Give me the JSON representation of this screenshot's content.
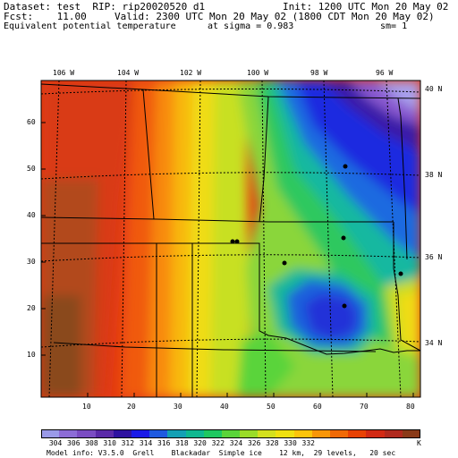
{
  "header": {
    "dataset_line": "Dataset: test  RIP: rip20020520 d1",
    "init_line": "Init: 1200 UTC Mon 20 May 02",
    "fcst_line": "Fcst:    11.00",
    "valid_line": "Valid: 2300 UTC Mon 20 May 02 (1800 CDT Mon 20 May 02)",
    "field_line": "Equivalent potential temperature",
    "sigma_line": "at sigma = 0.983",
    "sm_line": "sm= 1"
  },
  "map": {
    "top_lon_labels": [
      "106 W",
      "104 W",
      "102 W",
      "100 W",
      "98 W",
      "96 W"
    ],
    "right_lat_labels": [
      "40 N",
      "38 N",
      "36 N",
      "34 N"
    ],
    "y_axis_ticks": [
      "60",
      "50",
      "40",
      "30",
      "20",
      "10"
    ],
    "x_axis_ticks": [
      "10",
      "20",
      "30",
      "40",
      "50",
      "60",
      "70",
      "80"
    ],
    "domain_x": [
      1,
      82
    ],
    "domain_y": [
      1,
      69
    ]
  },
  "colorbar": {
    "labels": [
      "304",
      "306",
      "308",
      "310",
      "312",
      "314",
      "316",
      "318",
      "320",
      "322",
      "324",
      "326",
      "328",
      "330",
      "332"
    ],
    "unit": "K",
    "colors": [
      "#9a9ae8",
      "#8c6cd6",
      "#7a4cc2",
      "#5a2aa8",
      "#2e12a0",
      "#1a1ae8",
      "#1e5ae0",
      "#14a0b4",
      "#0fb890",
      "#1ec860",
      "#5ad43a",
      "#9adc28",
      "#d4e01e",
      "#f0e010",
      "#fcc40a",
      "#f89608",
      "#f06a06",
      "#e84204",
      "#d22a14",
      "#b02a1e",
      "#8a3a18"
    ]
  },
  "footer": {
    "model_info": "Model info: V3.5.0  Grell    Blackadar  Simple ice    12 km,  29 levels,   20 sec"
  }
}
